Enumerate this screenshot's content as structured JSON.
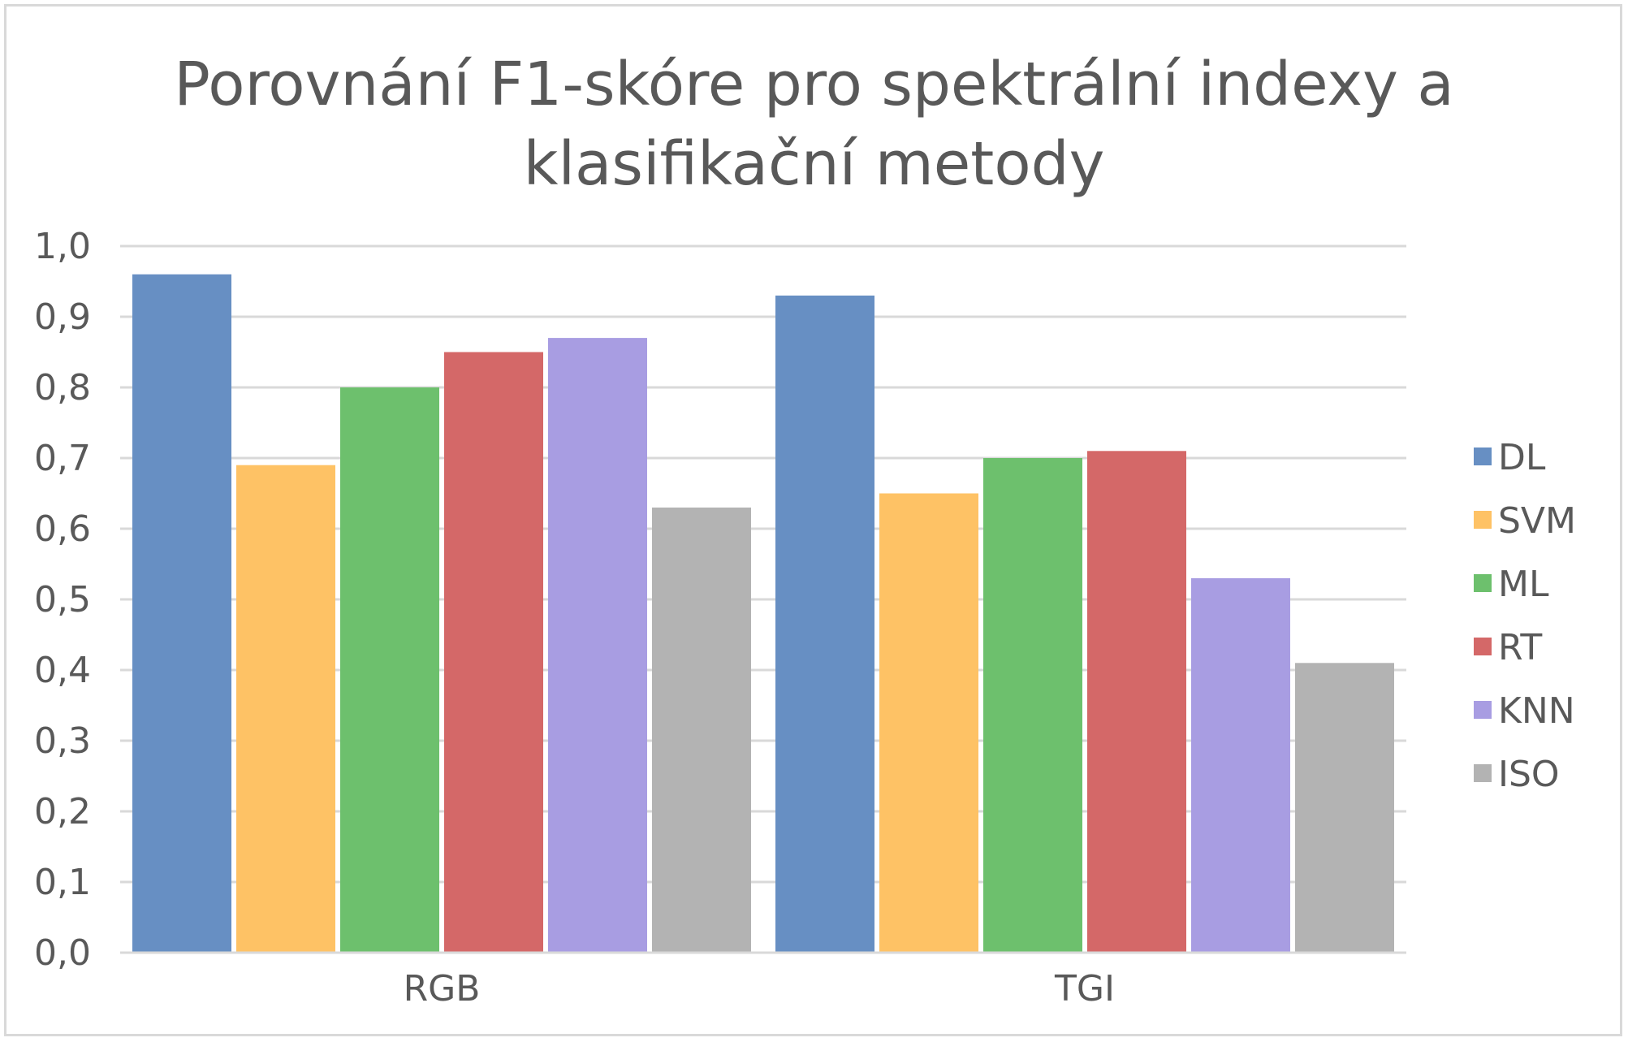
{
  "chart_data": {
    "type": "bar",
    "title": "Porovnání F1-skóre pro spektrální indexy a klasifikační metody",
    "xlabel": "",
    "ylabel": "",
    "categories": [
      "RGB",
      "TGI"
    ],
    "ylim": [
      0,
      1
    ],
    "yticks": [
      "0,0",
      "0,1",
      "0,2",
      "0,3",
      "0,4",
      "0,5",
      "0,6",
      "0,7",
      "0,8",
      "0,9",
      "1,0"
    ],
    "grid": true,
    "legend_position": "right",
    "series": [
      {
        "name": "DL",
        "color": "#678fc3",
        "values": [
          0.96,
          0.93
        ]
      },
      {
        "name": "SVM",
        "color": "#fec265",
        "values": [
          0.69,
          0.65
        ]
      },
      {
        "name": "ML",
        "color": "#6dc06d",
        "values": [
          0.8,
          0.7
        ]
      },
      {
        "name": "RT",
        "color": "#d46868",
        "values": [
          0.85,
          0.71
        ]
      },
      {
        "name": "KNN",
        "color": "#a89de2",
        "values": [
          0.87,
          0.53
        ]
      },
      {
        "name": "ISO",
        "color": "#b3b3b3",
        "values": [
          0.63,
          0.41
        ]
      }
    ]
  }
}
